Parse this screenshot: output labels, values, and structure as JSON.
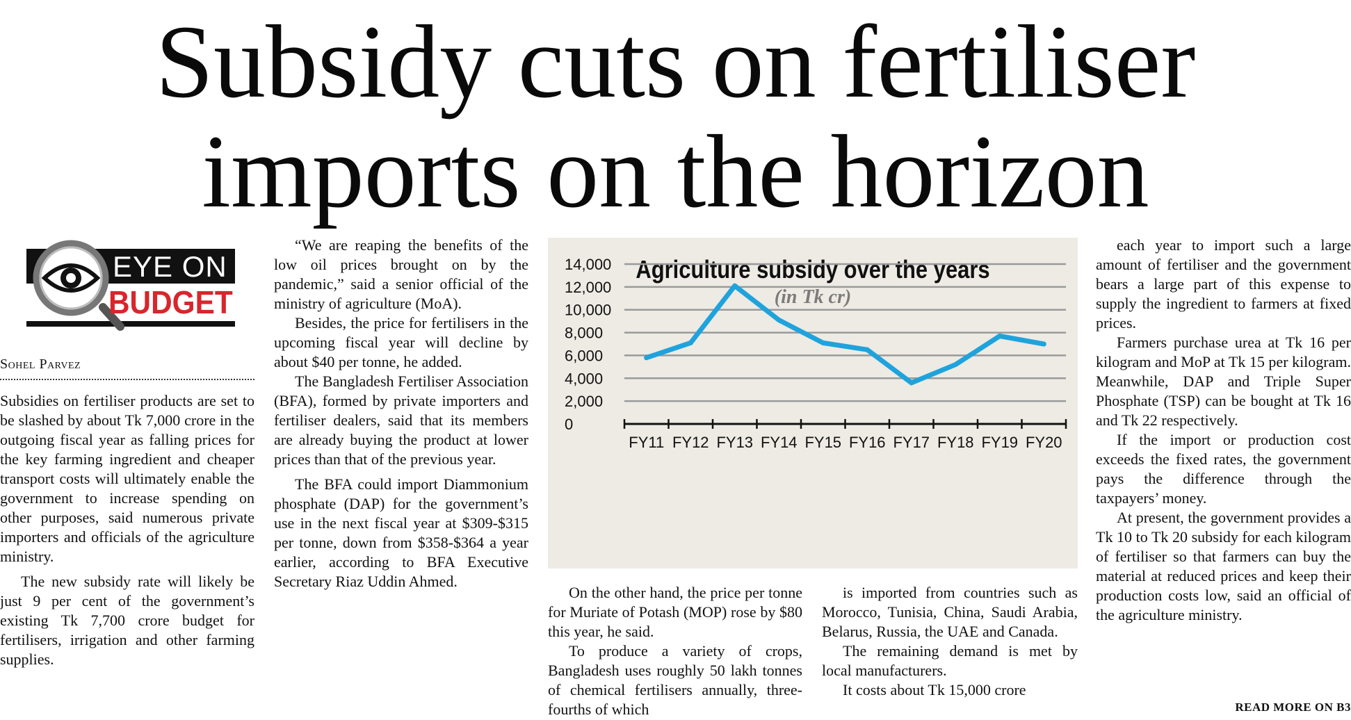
{
  "headline": {
    "line1": "Subsidy cuts on fertiliser",
    "line2": "imports on the horizon"
  },
  "logo": {
    "line1": "EYE ON",
    "line2": "BUDGET"
  },
  "byline": "Sohel Parvez",
  "column1": [
    "Subsidies on fertiliser products are set to be slashed by about Tk 7,000 crore in the outgoing fiscal year as falling prices for the key farming ingredient and cheaper transport costs will ultimately enable the government to increase spending on other purposes, said numerous private importers and officials of the agriculture ministry.",
    "The new subsidy rate will likely be just 9 per cent of the government’s existing Tk 7,700 crore budget for fertilisers, irrigation and other farming supplies."
  ],
  "column2": [
    "“We are reaping the benefits of the low oil prices brought on by the pandemic,” said a senior official of the ministry of agriculture (MoA).",
    "Besides, the price for fertilisers in the upcoming fiscal year will decline by about $40 per tonne, he added.",
    "The Bangladesh Fertiliser Association (BFA), formed by private importers and fertiliser dealers, said that its members are already buying the product at lower prices than that of the previous year.",
    "The BFA could import Diammonium phosphate (DAP) for the government’s use in the next fiscal year at $309-$315 per tonne, down from $358-$364 a year earlier, according to BFA Executive Secretary Riaz Uddin Ahmed."
  ],
  "column3": [
    "On the other hand, the price per tonne for Muriate of Potash (MOP) rose by $80 this year, he said.",
    "To produce a variety of crops, Bangladesh uses roughly 50 lakh tonnes of chemical fertilisers annually, three-fourths of which"
  ],
  "column4": [
    "is imported from countries such as Morocco, Tunisia, China, Saudi Arabia, Belarus, Russia, the UAE and Canada.",
    "The remaining demand is met by local manufacturers.",
    "It costs about Tk 15,000 crore"
  ],
  "column5": [
    "each year to import such a large amount of fertiliser and the government bears a large part of this expense to supply the ingredient to farmers at fixed prices.",
    "Farmers purchase urea at Tk 16 per kilogram and MoP at Tk 15 per kilogram. Meanwhile, DAP and Triple Super Phosphate (TSP) can be bought at Tk 16 and Tk 22 respectively.",
    "If the import or production cost exceeds the fixed rates, the government pays the difference through the taxpayers’ money.",
    "At present, the government provides a Tk 10 to Tk 20 subsidy for each kilogram of fertiliser so that farmers can buy the material at reduced prices and keep their production costs low, said an official of the agriculture ministry."
  ],
  "read_more": "READ MORE ON B3",
  "colors": {
    "line": "#1fa3dc",
    "grid": "#9a9a9a",
    "chart_bg": "#edebe4",
    "logo_red": "#d7262c"
  },
  "chart_data": {
    "type": "line",
    "title": "Agriculture subsidy over the years",
    "subtitle": "(in Tk cr)",
    "categories": [
      "FY11",
      "FY12",
      "FY13",
      "FY14",
      "FY15",
      "FY16",
      "FY17",
      "FY18",
      "FY19",
      "FY20"
    ],
    "values": [
      5800,
      7100,
      12100,
      9100,
      7100,
      6500,
      3600,
      5200,
      7700,
      7000
    ],
    "ylim": [
      0,
      14000
    ],
    "yticks": [
      "0",
      "2,000",
      "4,000",
      "6,000",
      "8,000",
      "10,000",
      "12,000",
      "14,000"
    ],
    "grid": true
  }
}
